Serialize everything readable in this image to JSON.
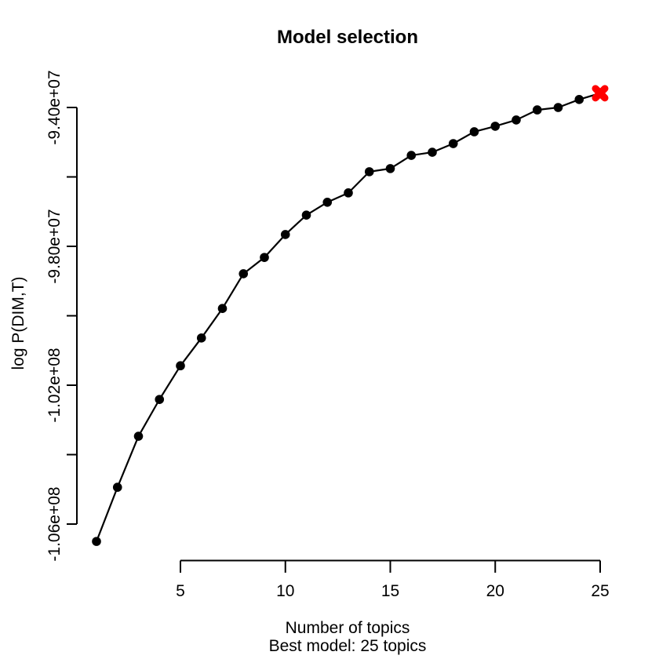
{
  "page": {
    "background": "#ffffff"
  },
  "chart_data": {
    "type": "line",
    "title": "Model selection",
    "xlabel": "Number of topics",
    "xlabel_line2": "Best model: 25 topics",
    "ylabel": "log P(DIM,T)",
    "x": [
      1,
      2,
      3,
      4,
      5,
      6,
      7,
      8,
      9,
      10,
      11,
      12,
      13,
      14,
      15,
      16,
      17,
      18,
      19,
      20,
      21,
      22,
      23,
      24,
      25
    ],
    "y": [
      -106500000,
      -104940000,
      -103470000,
      -102410000,
      -101440000,
      -100640000,
      -99790000,
      -98790000,
      -98320000,
      -97660000,
      -97100000,
      -96730000,
      -96460000,
      -95850000,
      -95760000,
      -95380000,
      -95290000,
      -95040000,
      -94700000,
      -94540000,
      -94360000,
      -94070000,
      -94000000,
      -93770000,
      -93590000
    ],
    "xticks": [
      5,
      10,
      15,
      20,
      25
    ],
    "yticks": {
      "values": [
        -94000000,
        -96000000,
        -98000000,
        -100000000,
        -102000000,
        -104000000,
        -106000000
      ],
      "labels": [
        "-9.40e+07",
        "",
        "-9.80e+07",
        "",
        "-1.02e+08",
        "",
        "-1.06e+08"
      ]
    },
    "xlim": [
      1,
      25
    ],
    "ylim": [
      -106600000,
      -93500000
    ],
    "grid": false,
    "legend": "none",
    "marker": "filled-circle",
    "series_color": "#000000",
    "best_model": {
      "x": 25,
      "marker": "X",
      "color": "#ff0000"
    }
  }
}
